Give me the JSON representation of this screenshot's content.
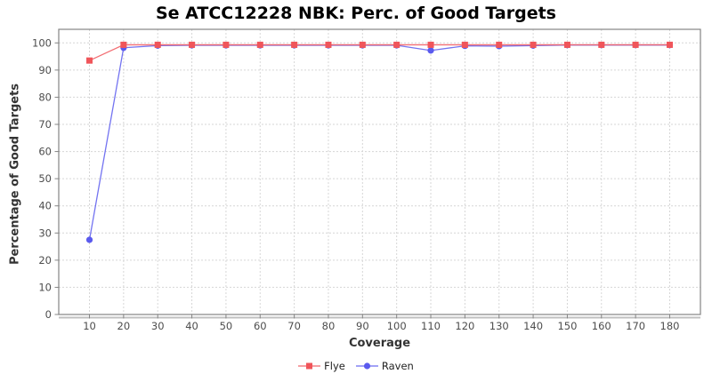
{
  "chart_data": {
    "type": "line",
    "title": "Se ATCC12228 NBK: Perc. of Good Targets",
    "xlabel": "Coverage",
    "ylabel": "Percentage of Good Targets",
    "x": [
      10,
      20,
      30,
      40,
      50,
      60,
      70,
      80,
      90,
      100,
      110,
      120,
      130,
      140,
      150,
      160,
      170,
      180
    ],
    "xticks": [
      10,
      20,
      30,
      40,
      50,
      60,
      70,
      80,
      90,
      100,
      110,
      120,
      130,
      140,
      150,
      160,
      170,
      180
    ],
    "yticks": [
      0,
      10,
      20,
      30,
      40,
      50,
      60,
      70,
      80,
      90,
      100
    ],
    "xlim": [
      1,
      189
    ],
    "ylim": [
      0,
      105
    ],
    "grid": true,
    "legend_position": "bottom",
    "series": [
      {
        "name": "Flye",
        "marker": "square",
        "color": "#f0555a",
        "values": [
          93.5,
          99.3,
          99.3,
          99.3,
          99.3,
          99.3,
          99.3,
          99.3,
          99.3,
          99.3,
          99.3,
          99.3,
          99.3,
          99.3,
          99.3,
          99.3,
          99.3,
          99.3
        ]
      },
      {
        "name": "Raven",
        "marker": "circle",
        "color": "#5a5aee",
        "values": [
          27.5,
          98.2,
          99.0,
          99.1,
          99.1,
          99.1,
          99.1,
          99.1,
          99.1,
          99.1,
          97.2,
          98.9,
          98.8,
          99.0,
          99.2,
          99.2,
          99.2,
          99.2
        ]
      }
    ],
    "colors": {
      "background": "#ffffff",
      "gridline": "#d6d6d6",
      "axis_border": "#848484",
      "axis_baseline": "#c0c0c0",
      "tick_label": "#4d4d4d",
      "axis_label": "#333333",
      "title": "#000000"
    }
  }
}
